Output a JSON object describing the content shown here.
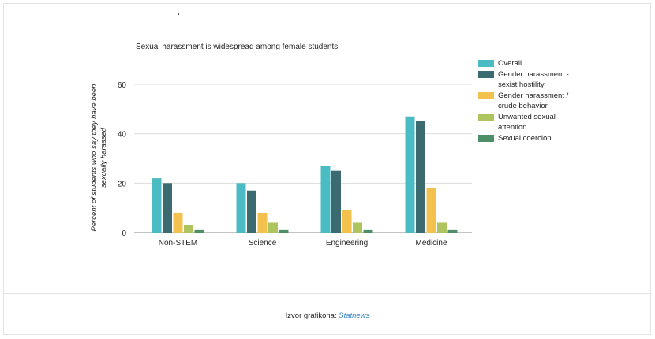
{
  "chart_data": {
    "type": "bar",
    "title": "Sexual harassment is widespread among female students",
    "ylabel": "Percent of students who say they have been sexually harassed",
    "xlabel": "",
    "ylim": [
      0,
      60
    ],
    "yticks": [
      "0",
      "20",
      "40",
      "60"
    ],
    "categories": [
      "Non-STEM",
      "Science",
      "Engineering",
      "Medicine"
    ],
    "series": [
      {
        "name": "Overall",
        "color": "#4bbcc3",
        "values": [
          22,
          20,
          27,
          47
        ]
      },
      {
        "name": "Gender harassment - sexist hostility",
        "color": "#3b6a70",
        "values": [
          20,
          17,
          25,
          45
        ]
      },
      {
        "name": "Gender harassment / crude behavior",
        "color": "#f3c14e",
        "values": [
          8,
          8,
          9,
          18
        ]
      },
      {
        "name": "Unwanted sexual attention",
        "color": "#adc45f",
        "values": [
          3,
          4,
          4,
          4
        ]
      },
      {
        "name": "Sexual coercion",
        "color": "#4f8f68",
        "values": [
          1,
          1,
          1,
          1
        ]
      }
    ],
    "grid": true,
    "legend": "right"
  },
  "footer": {
    "label": "Izvor grafikona:",
    "source": "Statnews"
  }
}
